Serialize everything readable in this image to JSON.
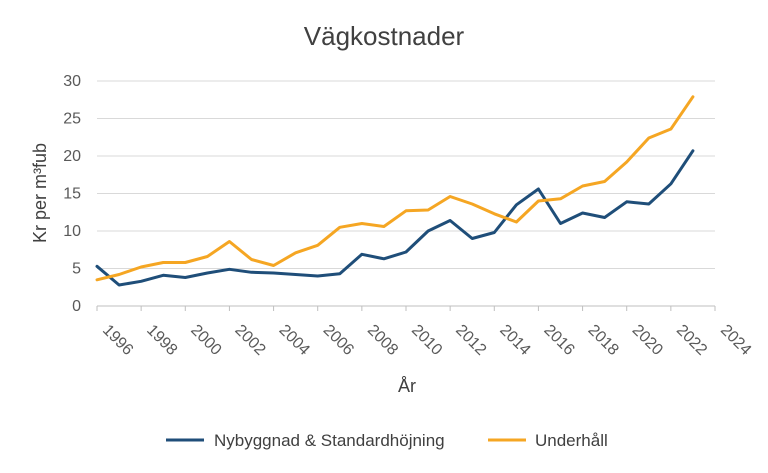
{
  "chart_data": {
    "type": "line",
    "title": "Vägkostnader",
    "xlabel": "År",
    "ylabel": "Kr per m³fub",
    "xlim": [
      1996,
      2024
    ],
    "ylim": [
      0,
      30
    ],
    "x_ticks": [
      "1996",
      "1998",
      "2000",
      "2002",
      "2004",
      "2006",
      "2008",
      "2010",
      "2012",
      "2014",
      "2016",
      "2018",
      "2020",
      "2022",
      "2024"
    ],
    "y_ticks": [
      "0",
      "5",
      "10",
      "15",
      "20",
      "25",
      "30"
    ],
    "grid": true,
    "legend_position": "bottom",
    "x": [
      1996,
      1997,
      1998,
      1999,
      2000,
      2001,
      2002,
      2003,
      2004,
      2005,
      2006,
      2007,
      2008,
      2009,
      2010,
      2011,
      2012,
      2013,
      2014,
      2015,
      2016,
      2017,
      2018,
      2019,
      2020,
      2021,
      2022,
      2023
    ],
    "series": [
      {
        "name": "Nybyggnad & Standardhöjning",
        "color": "#1f4e79",
        "values": [
          5.3,
          2.8,
          3.3,
          4.1,
          3.8,
          4.4,
          4.9,
          4.5,
          4.4,
          4.2,
          4.0,
          4.3,
          6.9,
          6.3,
          7.2,
          10.0,
          11.4,
          9.0,
          9.8,
          13.5,
          15.6,
          11.0,
          12.4,
          11.8,
          13.9,
          13.6,
          16.3,
          20.7
        ]
      },
      {
        "name": "Underhåll",
        "color": "#f5a623",
        "values": [
          3.5,
          4.2,
          5.2,
          5.8,
          5.8,
          6.6,
          8.6,
          6.2,
          5.4,
          7.1,
          8.1,
          10.5,
          11.0,
          10.6,
          12.7,
          12.8,
          14.6,
          13.6,
          12.3,
          11.2,
          14.0,
          14.3,
          16.0,
          16.6,
          19.2,
          22.4,
          23.6,
          27.9
        ]
      }
    ]
  }
}
